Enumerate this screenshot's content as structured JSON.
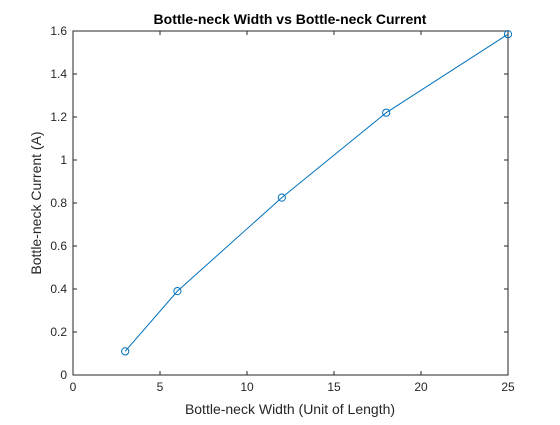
{
  "chart_data": {
    "type": "line",
    "title": "Bottle-neck Width vs Bottle-neck Current",
    "xlabel": "Bottle-neck Width (Unit of Length)",
    "ylabel": "Bottle-neck Current (A)",
    "xlim": [
      0,
      25
    ],
    "ylim": [
      0,
      1.6
    ],
    "xticks": [
      0,
      5,
      10,
      15,
      20,
      25
    ],
    "yticks": [
      0,
      0.2,
      0.4,
      0.6,
      0.8,
      1,
      1.2,
      1.4,
      1.6
    ],
    "xtick_labels": [
      "0",
      "5",
      "10",
      "15",
      "20",
      "25"
    ],
    "ytick_labels": [
      "0",
      "0.2",
      "0.4",
      "0.6",
      "0.8",
      "1",
      "1.2",
      "1.4",
      "1.6"
    ],
    "grid": false,
    "marker": "circle",
    "color": "#0072BD",
    "series": [
      {
        "x": [
          3,
          6,
          12,
          18,
          25
        ],
        "y": [
          0.11,
          0.39,
          0.825,
          1.22,
          1.585
        ]
      }
    ]
  }
}
